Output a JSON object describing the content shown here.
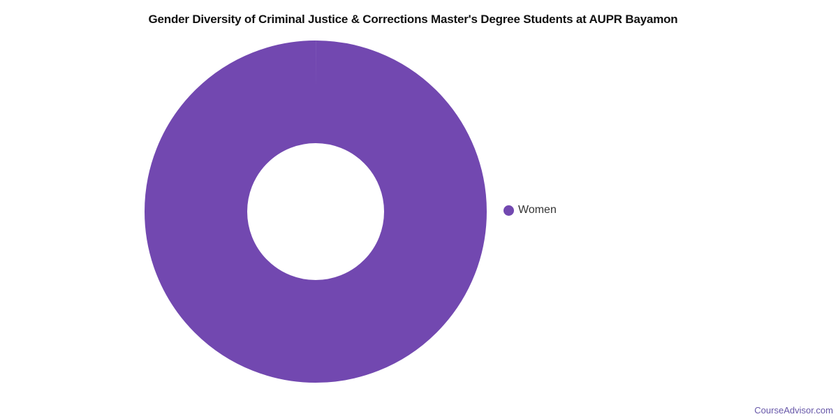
{
  "chart_data": {
    "type": "pie",
    "subtype": "donut",
    "title": "Gender Diversity of Criminal Justice & Corrections Master's Degree Students at AUPR Bayamon",
    "categories": [
      "Women"
    ],
    "values": [
      100
    ],
    "unit": "percent",
    "colors": [
      "#7248b0"
    ],
    "inner_radius_ratio": 0.4,
    "data_labels": false,
    "legend_position": "right"
  },
  "legend": {
    "items": [
      {
        "label": "Women",
        "color": "#7248b0"
      }
    ]
  },
  "branding": {
    "watermark": "CourseAdvisor.com",
    "color": "#6757a8"
  }
}
